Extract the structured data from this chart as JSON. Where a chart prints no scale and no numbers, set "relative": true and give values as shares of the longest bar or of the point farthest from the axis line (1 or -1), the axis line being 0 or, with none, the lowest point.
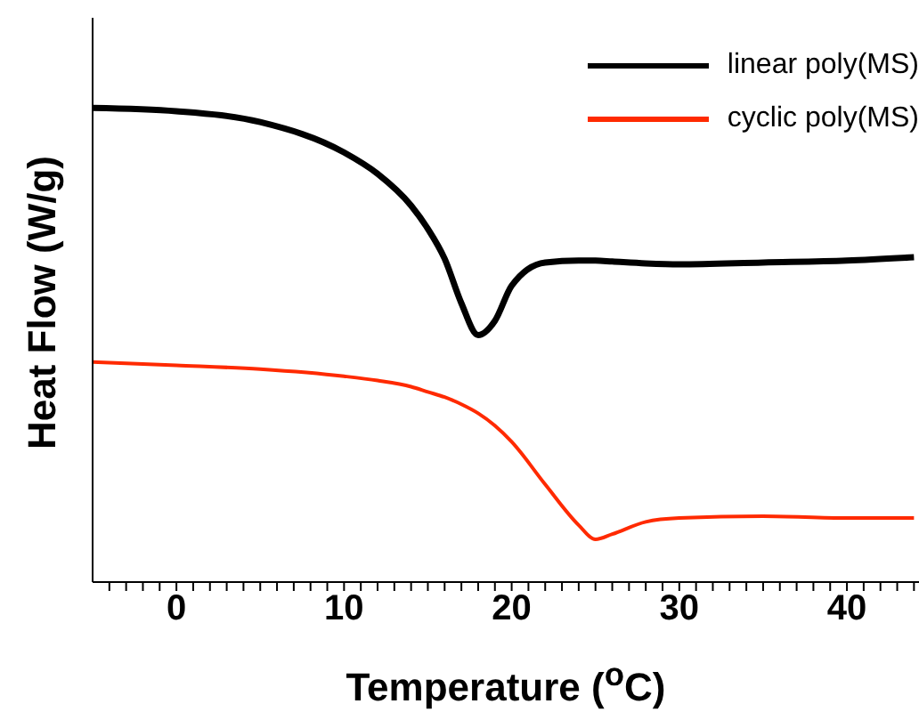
{
  "chart_data": {
    "type": "line",
    "relative": true,
    "xlabel": "Temperature ($^{o}$C)",
    "ylabel": "Heat Flow (W/g)",
    "x": [
      -5,
      0,
      5,
      10,
      12,
      14,
      15,
      16,
      17,
      18,
      19,
      20,
      22,
      24,
      25,
      26,
      28,
      30,
      35,
      40,
      44
    ],
    "series": [
      {
        "name": "linear poly(MS)",
        "color": "#000000",
        "values": [
          1.0,
          0.993,
          0.97,
          0.906,
          0.861,
          0.794,
          0.745,
          0.682,
          0.588,
          0.521,
          0.551,
          0.625,
          0.674,
          0.678,
          0.678,
          0.676,
          0.672,
          0.67,
          0.674,
          0.678,
          0.685
        ]
      },
      {
        "name": "cyclic poly(MS)",
        "color": "#ff2a00",
        "values": [
          0.464,
          0.457,
          0.449,
          0.434,
          0.425,
          0.412,
          0.401,
          0.39,
          0.375,
          0.356,
          0.33,
          0.296,
          0.206,
          0.12,
          0.09,
          0.101,
          0.127,
          0.135,
          0.139,
          0.135,
          0.135
        ]
      }
    ],
    "xlim": [
      -5,
      44.3
    ],
    "xticks": [
      {
        "value": -4,
        "label": null
      },
      {
        "value": -3,
        "label": null
      },
      {
        "value": -2,
        "label": null
      },
      {
        "value": -1,
        "label": null
      },
      0,
      {
        "value": 1,
        "label": null
      },
      {
        "value": 2,
        "label": null
      },
      {
        "value": 3,
        "label": null
      },
      {
        "value": 4,
        "label": null
      },
      {
        "value": 5,
        "label": null
      },
      {
        "value": 6,
        "label": null
      },
      {
        "value": 7,
        "label": null
      },
      {
        "value": 8,
        "label": null
      },
      {
        "value": 9,
        "label": null
      },
      10,
      {
        "value": 11,
        "label": null
      },
      {
        "value": 12,
        "label": null
      },
      {
        "value": 13,
        "label": null
      },
      {
        "value": 14,
        "label": null
      },
      {
        "value": 15,
        "label": null
      },
      {
        "value": 16,
        "label": null
      },
      {
        "value": 17,
        "label": null
      },
      {
        "value": 18,
        "label": null
      },
      {
        "value": 19,
        "label": null
      },
      20,
      {
        "value": 21,
        "label": null
      },
      {
        "value": 22,
        "label": null
      },
      {
        "value": 23,
        "label": null
      },
      {
        "value": 24,
        "label": null
      },
      {
        "value": 25,
        "label": null
      },
      {
        "value": 26,
        "label": null
      },
      {
        "value": 27,
        "label": null
      },
      {
        "value": 28,
        "label": null
      },
      {
        "value": 29,
        "label": null
      },
      30,
      {
        "value": 31,
        "label": null
      },
      {
        "value": 32,
        "label": null
      },
      {
        "value": 33,
        "label": null
      },
      {
        "value": 34,
        "label": null
      },
      {
        "value": 35,
        "label": null
      },
      {
        "value": 36,
        "label": null
      },
      {
        "value": 37,
        "label": null
      },
      {
        "value": 38,
        "label": null
      },
      {
        "value": 39,
        "label": null
      },
      40,
      {
        "value": 41,
        "label": null
      },
      {
        "value": 42,
        "label": null
      },
      {
        "value": 43,
        "label": null
      },
      {
        "value": 44,
        "label": null
      }
    ],
    "legend": "top right",
    "grid": false,
    "marker": "none",
    "line_style": "solid"
  }
}
